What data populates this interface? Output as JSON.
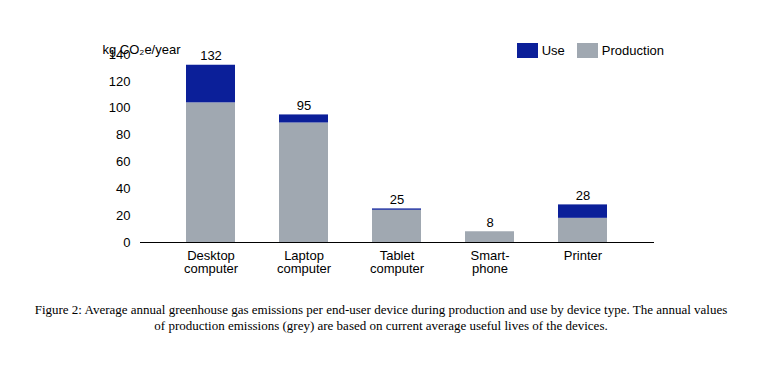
{
  "chart_data": {
    "type": "bar",
    "stacked": true,
    "ylabel": "kg CO₂e/year",
    "caption": "Figure 2: Average annual greenhouse gas emissions per end-user device during production and use by device type.  The annual values of production emissions (grey) are based on current average useful lives of the devices.",
    "categories": [
      "Desktop\ncomputer",
      "Laptop\ncomputer",
      "Tablet\ncomputer",
      "Smart-\nphone",
      "Printer"
    ],
    "series": [
      {
        "name": "Production",
        "color": "#a0a8b1",
        "values": [
          104,
          89,
          24,
          8,
          18
        ]
      },
      {
        "name": "Use",
        "color": "#0b1f99",
        "values": [
          28,
          6,
          1,
          0,
          10
        ]
      }
    ],
    "totals": [
      132,
      95,
      25,
      8,
      28
    ],
    "ylim": [
      0,
      140
    ],
    "yticks": [
      0,
      20,
      40,
      60,
      80,
      100,
      120,
      140
    ],
    "grid": false,
    "legend": "top-right"
  }
}
